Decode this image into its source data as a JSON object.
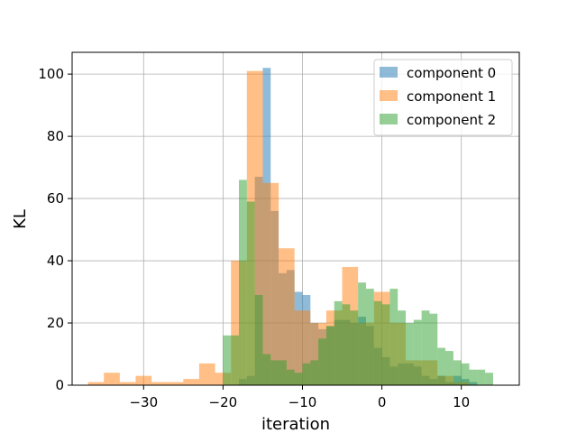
{
  "chart_data": {
    "type": "histogram",
    "xlabel": "iteration",
    "ylabel": "KL",
    "xlim": [
      -39,
      17.3
    ],
    "ylim": [
      0,
      107
    ],
    "xticks": [
      -30,
      -20,
      -10,
      0,
      10
    ],
    "xtick_labels": [
      "−30",
      "−20",
      "−10",
      "0",
      "10"
    ],
    "yticks": [
      0,
      20,
      40,
      60,
      80,
      100
    ],
    "ytick_labels": [
      "0",
      "20",
      "40",
      "60",
      "80",
      "100"
    ],
    "grid": true,
    "legend_position": "top-right",
    "alpha": 0.5,
    "series": [
      {
        "name": "component 0",
        "color": "#1f77b4",
        "bins": [
          [
            -19,
            -18,
            0
          ],
          [
            -18,
            -17,
            2
          ],
          [
            -17,
            -16,
            3
          ],
          [
            -16,
            -15,
            67
          ],
          [
            -15,
            -14,
            102
          ],
          [
            -14,
            -13,
            56
          ],
          [
            -13,
            -12,
            36
          ],
          [
            -12,
            -11,
            37
          ],
          [
            -11,
            -10,
            30
          ],
          [
            -10,
            -9,
            29
          ],
          [
            -9,
            -8,
            20
          ],
          [
            -8,
            -7,
            18
          ],
          [
            -7,
            -6,
            19
          ],
          [
            -6,
            -5,
            21
          ],
          [
            -5,
            -4,
            21
          ],
          [
            -4,
            -3,
            20
          ],
          [
            -3,
            -2,
            22
          ],
          [
            -2,
            -1,
            19
          ],
          [
            -1,
            0,
            12
          ],
          [
            0,
            1,
            9
          ],
          [
            1,
            2,
            6
          ],
          [
            2,
            3,
            7
          ],
          [
            3,
            4,
            7
          ],
          [
            4,
            5,
            6
          ],
          [
            5,
            6,
            3
          ],
          [
            6,
            7,
            2
          ],
          [
            7,
            8,
            3
          ],
          [
            8,
            9,
            1
          ],
          [
            9,
            10,
            3
          ],
          [
            10,
            11,
            2
          ],
          [
            11,
            12,
            1
          ]
        ]
      },
      {
        "name": "component 1",
        "color": "#ff7f0e",
        "bins": [
          [
            -37,
            -35,
            1
          ],
          [
            -35,
            -33,
            4
          ],
          [
            -33,
            -31,
            1
          ],
          [
            -31,
            -29,
            3
          ],
          [
            -29,
            -27,
            1
          ],
          [
            -27,
            -25,
            1
          ],
          [
            -25,
            -23,
            2
          ],
          [
            -23,
            -21,
            7
          ],
          [
            -21,
            -19,
            4
          ],
          [
            -19,
            -17,
            40
          ],
          [
            -17,
            -15,
            101
          ],
          [
            -15,
            -13,
            65
          ],
          [
            -13,
            -11,
            44
          ],
          [
            -11,
            -9,
            24
          ],
          [
            -9,
            -7,
            20
          ],
          [
            -7,
            -5,
            24
          ],
          [
            -5,
            -3,
            38
          ],
          [
            -3,
            -1,
            20
          ],
          [
            -1,
            1,
            30
          ],
          [
            1,
            3,
            20
          ],
          [
            3,
            5,
            8
          ],
          [
            5,
            7,
            8
          ],
          [
            7,
            9,
            3
          ],
          [
            9,
            11,
            1
          ]
        ]
      },
      {
        "name": "component 2",
        "color": "#2ca02c",
        "bins": [
          [
            -20,
            -19,
            16
          ],
          [
            -19,
            -18,
            16
          ],
          [
            -18,
            -17,
            66
          ],
          [
            -17,
            -16,
            59
          ],
          [
            -16,
            -15,
            29
          ],
          [
            -15,
            -14,
            10
          ],
          [
            -14,
            -13,
            8
          ],
          [
            -13,
            -12,
            8
          ],
          [
            -12,
            -11,
            5
          ],
          [
            -11,
            -10,
            4
          ],
          [
            -10,
            -9,
            7
          ],
          [
            -9,
            -8,
            8
          ],
          [
            -8,
            -7,
            15
          ],
          [
            -7,
            -6,
            19
          ],
          [
            -6,
            -5,
            27
          ],
          [
            -5,
            -4,
            26
          ],
          [
            -4,
            -3,
            24
          ],
          [
            -3,
            -2,
            33
          ],
          [
            -2,
            -1,
            31
          ],
          [
            -1,
            0,
            27
          ],
          [
            0,
            1,
            26
          ],
          [
            1,
            2,
            31
          ],
          [
            2,
            3,
            24
          ],
          [
            3,
            4,
            20
          ],
          [
            4,
            5,
            21
          ],
          [
            5,
            6,
            24
          ],
          [
            6,
            7,
            23
          ],
          [
            7,
            8,
            12
          ],
          [
            8,
            9,
            11
          ],
          [
            9,
            10,
            8
          ],
          [
            10,
            11,
            7
          ],
          [
            11,
            12,
            5
          ],
          [
            12,
            13,
            5
          ],
          [
            13,
            14,
            4
          ]
        ]
      }
    ]
  }
}
